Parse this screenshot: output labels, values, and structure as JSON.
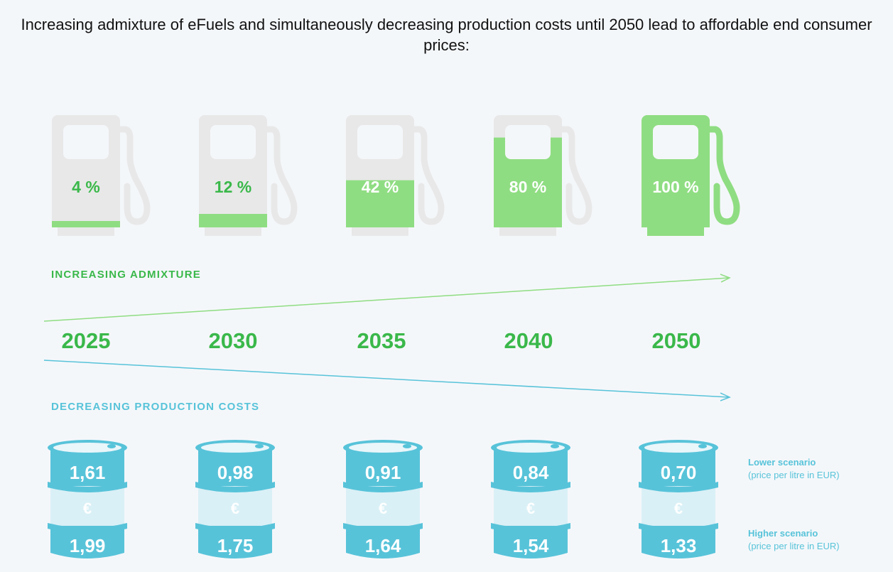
{
  "title": "Increasing admixture of eFuels and simultaneously decreasing production costs until 2050 lead to affordable end consumer prices:",
  "labels": {
    "admixture": "INCREASING ADMIXTURE",
    "costs": "DECREASING PRODUCTION COSTS"
  },
  "colors": {
    "green": "#3ab84a",
    "light_green": "#8fdd82",
    "pump_grey": "#e8e8e8",
    "teal": "#57c3d9",
    "light_teal": "#d9f0f6"
  },
  "columns": [
    {
      "year": "2025",
      "admixture": "4 %",
      "fill_fraction": 0.04,
      "lower": "1,61",
      "higher": "1,99"
    },
    {
      "year": "2030",
      "admixture": "12 %",
      "fill_fraction": 0.12,
      "lower": "0,98",
      "higher": "1,75"
    },
    {
      "year": "2035",
      "admixture": "42 %",
      "fill_fraction": 0.42,
      "lower": "0,91",
      "higher": "1,64"
    },
    {
      "year": "2040",
      "admixture": "80 %",
      "fill_fraction": 0.8,
      "lower": "0,84",
      "higher": "1,54"
    },
    {
      "year": "2050",
      "admixture": "100 %",
      "fill_fraction": 1.0,
      "lower": "0,70",
      "higher": "1,33"
    }
  ],
  "currency_symbol": "€",
  "legend": {
    "lower_title": "Lower scenario",
    "lower_sub": "(price per litre in EUR)",
    "higher_title": "Higher scenario",
    "higher_sub": "(price per litre in EUR)"
  }
}
